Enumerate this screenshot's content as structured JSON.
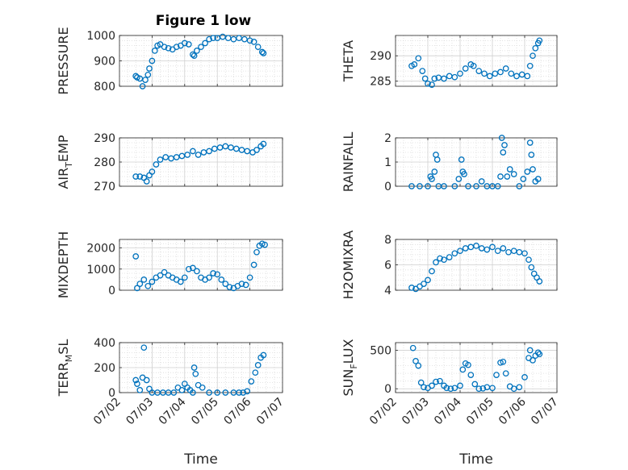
{
  "figure": {
    "title": "Figure 1 low"
  },
  "colors": {
    "marker": "#0072BD",
    "axis": "#262626",
    "grid": "#b3b3b3"
  },
  "chart_data": [
    {
      "type": "scatter",
      "ylabel": "PRESSURE",
      "xlabel": "",
      "ylim": [
        800,
        1000
      ],
      "yticks": [
        800,
        900,
        1000
      ],
      "x": [
        "07/02 12:00",
        "07/02 13:00",
        "07/02 15:00",
        "07/02 17:00",
        "07/02 19:00",
        "07/02 21:00",
        "07/02 22:00",
        "07/03 00:00",
        "07/03 02:00",
        "07/03 04:00",
        "07/03 06:00",
        "07/03 09:00",
        "07/03 12:00",
        "07/03 15:00",
        "07/03 18:00",
        "07/03 21:00",
        "07/04 00:00",
        "07/04 03:00",
        "07/04 06:00",
        "07/04 07:00",
        "07/04 09:00",
        "07/04 12:00",
        "07/04 15:00",
        "07/04 18:00",
        "07/04 21:00",
        "07/05 00:00",
        "07/05 04:00",
        "07/05 08:00",
        "07/05 12:00",
        "07/05 16:00",
        "07/05 20:00",
        "07/06 00:00",
        "07/06 03:00",
        "07/06 06:00",
        "07/06 09:00",
        "07/06 10:00"
      ],
      "y": [
        840,
        835,
        830,
        800,
        825,
        845,
        870,
        900,
        940,
        960,
        965,
        955,
        950,
        945,
        955,
        960,
        970,
        965,
        925,
        920,
        940,
        955,
        970,
        985,
        990,
        990,
        995,
        990,
        985,
        990,
        985,
        980,
        975,
        955,
        935,
        930
      ]
    },
    {
      "type": "scatter",
      "ylabel": "THETA",
      "xlabel": "",
      "ylim": [
        284,
        294
      ],
      "yticks": [
        285,
        290
      ],
      "x": [
        "07/02 12:00",
        "07/02 14:00",
        "07/02 17:00",
        "07/02 20:00",
        "07/02 22:00",
        "07/03 00:00",
        "07/03 03:00",
        "07/03 05:00",
        "07/03 08:00",
        "07/03 12:00",
        "07/03 16:00",
        "07/03 20:00",
        "07/04 00:00",
        "07/04 04:00",
        "07/04 08:00",
        "07/04 10:00",
        "07/04 14:00",
        "07/04 18:00",
        "07/04 22:00",
        "07/05 02:00",
        "07/05 06:00",
        "07/05 10:00",
        "07/05 14:00",
        "07/05 18:00",
        "07/05 22:00",
        "07/06 02:00",
        "07/06 04:00",
        "07/06 06:00",
        "07/06 08:00",
        "07/06 10:00",
        "07/06 11:00"
      ],
      "y": [
        288,
        288.3,
        289.5,
        287,
        285.5,
        284.5,
        284.3,
        285.5,
        285.7,
        285.5,
        286,
        285.8,
        286.5,
        287.5,
        288.3,
        288,
        287,
        286.5,
        286,
        286.5,
        286.8,
        287.5,
        286.5,
        286,
        286.3,
        286,
        288,
        290,
        291.5,
        292.5,
        293
      ]
    },
    {
      "type": "scatter",
      "ylabel": "AIR_TEMP",
      "xlabel": "",
      "ylim": [
        270,
        290
      ],
      "yticks": [
        270,
        280,
        290
      ],
      "x": [
        "07/02 12:00",
        "07/02 15:00",
        "07/02 18:00",
        "07/02 20:00",
        "07/02 22:00",
        "07/03 00:00",
        "07/03 03:00",
        "07/03 06:00",
        "07/03 10:00",
        "07/03 14:00",
        "07/03 18:00",
        "07/03 22:00",
        "07/04 02:00",
        "07/04 06:00",
        "07/04 10:00",
        "07/04 14:00",
        "07/04 18:00",
        "07/04 22:00",
        "07/05 02:00",
        "07/05 06:00",
        "07/05 10:00",
        "07/05 14:00",
        "07/05 18:00",
        "07/05 22:00",
        "07/06 02:00",
        "07/06 05:00",
        "07/06 08:00",
        "07/06 10:00"
      ],
      "y": [
        274,
        274,
        273.5,
        272,
        274.5,
        276,
        279,
        281,
        282,
        281.5,
        282,
        282.5,
        283,
        284.5,
        283,
        284,
        284.5,
        285.5,
        286,
        286.5,
        286,
        285.5,
        285,
        284.5,
        284,
        285,
        286.5,
        287.5
      ]
    },
    {
      "type": "scatter",
      "ylabel": "RAINFALL",
      "xlabel": "",
      "ylim": [
        0,
        2
      ],
      "yticks": [
        0,
        1,
        2
      ],
      "x": [
        "07/02 12:00",
        "07/02 18:00",
        "07/03 00:00",
        "07/03 02:00",
        "07/03 03:00",
        "07/03 05:00",
        "07/03 06:00",
        "07/03 07:00",
        "07/03 08:00",
        "07/03 12:00",
        "07/03 20:00",
        "07/03 23:00",
        "07/04 01:00",
        "07/04 02:00",
        "07/04 03:00",
        "07/04 06:00",
        "07/04 12:00",
        "07/04 16:00",
        "07/04 20:00",
        "07/05 00:00",
        "07/05 04:00",
        "07/05 06:00",
        "07/05 07:00",
        "07/05 08:00",
        "07/05 09:00",
        "07/05 11:00",
        "07/05 13:00",
        "07/05 16:00",
        "07/05 20:00",
        "07/05 23:00",
        "07/06 02:00",
        "07/06 04:00",
        "07/06 05:00",
        "07/06 06:00",
        "07/06 08:00",
        "07/06 10:00"
      ],
      "y": [
        0,
        0,
        0,
        0.4,
        0.3,
        0.6,
        1.3,
        1.1,
        0,
        0,
        0,
        0.3,
        1.1,
        0.6,
        0.5,
        0,
        0,
        0.2,
        0,
        0,
        0,
        0.4,
        2.0,
        1.4,
        1.7,
        0.4,
        0.7,
        0.5,
        0,
        0.3,
        0.6,
        1.8,
        1.3,
        0.7,
        0.2,
        0.3
      ]
    },
    {
      "type": "scatter",
      "ylabel": "MIXDEPTH",
      "xlabel": "",
      "ylim": [
        0,
        2400
      ],
      "yticks": [
        0,
        1000,
        2000
      ],
      "x": [
        "07/02 12:00",
        "07/02 13:00",
        "07/02 15:00",
        "07/02 18:00",
        "07/02 21:00",
        "07/03 00:00",
        "07/03 03:00",
        "07/03 06:00",
        "07/03 09:00",
        "07/03 12:00",
        "07/03 15:00",
        "07/03 18:00",
        "07/03 21:00",
        "07/04 00:00",
        "07/04 03:00",
        "07/04 06:00",
        "07/04 09:00",
        "07/04 12:00",
        "07/04 15:00",
        "07/04 18:00",
        "07/04 21:00",
        "07/05 00:00",
        "07/05 03:00",
        "07/05 06:00",
        "07/05 09:00",
        "07/05 12:00",
        "07/05 15:00",
        "07/05 18:00",
        "07/05 21:00",
        "07/06 00:00",
        "07/06 03:00",
        "07/06 05:00",
        "07/06 07:00",
        "07/06 09:00",
        "07/06 11:00"
      ],
      "y": [
        1600,
        100,
        300,
        500,
        200,
        400,
        600,
        700,
        850,
        700,
        600,
        500,
        400,
        600,
        1000,
        1050,
        900,
        600,
        500,
        600,
        800,
        750,
        500,
        300,
        150,
        100,
        200,
        300,
        250,
        600,
        1200,
        1800,
        2100,
        2200,
        2150
      ]
    },
    {
      "type": "scatter",
      "ylabel": "H2OMIXRA",
      "xlabel": "",
      "ylim": [
        4,
        8
      ],
      "yticks": [
        4,
        6,
        8
      ],
      "x": [
        "07/02 12:00",
        "07/02 15:00",
        "07/02 18:00",
        "07/02 21:00",
        "07/03 00:00",
        "07/03 03:00",
        "07/03 06:00",
        "07/03 09:00",
        "07/03 12:00",
        "07/03 16:00",
        "07/03 20:00",
        "07/04 00:00",
        "07/04 04:00",
        "07/04 08:00",
        "07/04 12:00",
        "07/04 16:00",
        "07/04 20:00",
        "07/05 00:00",
        "07/05 04:00",
        "07/05 08:00",
        "07/05 12:00",
        "07/05 16:00",
        "07/05 20:00",
        "07/06 00:00",
        "07/06 03:00",
        "07/06 05:00",
        "07/06 07:00",
        "07/06 09:00",
        "07/06 11:00"
      ],
      "y": [
        4.2,
        4.1,
        4.3,
        4.5,
        4.8,
        5.5,
        6.2,
        6.5,
        6.4,
        6.6,
        6.9,
        7.1,
        7.3,
        7.4,
        7.5,
        7.3,
        7.2,
        7.4,
        7.1,
        7.3,
        7.0,
        7.1,
        7.0,
        6.9,
        6.4,
        5.8,
        5.3,
        5.0,
        4.7
      ]
    },
    {
      "type": "scatter",
      "ylabel": "TERR_MSL",
      "xlabel": "Time",
      "ylim": [
        0,
        400
      ],
      "yticks": [
        0,
        200,
        400
      ],
      "xlim": [
        "07/02",
        "07/07"
      ],
      "xticks": [
        "07/02",
        "07/03",
        "07/04",
        "07/05",
        "07/06",
        "07/07"
      ],
      "x": [
        "07/02 12:00",
        "07/02 13:00",
        "07/02 15:00",
        "07/02 17:00",
        "07/02 18:00",
        "07/02 20:00",
        "07/02 22:00",
        "07/03 00:00",
        "07/03 04:00",
        "07/03 08:00",
        "07/03 12:00",
        "07/03 16:00",
        "07/03 19:00",
        "07/03 22:00",
        "07/04 00:00",
        "07/04 02:00",
        "07/04 04:00",
        "07/04 06:00",
        "07/04 07:00",
        "07/04 08:00",
        "07/04 10:00",
        "07/04 13:00",
        "07/04 18:00",
        "07/05 00:00",
        "07/05 06:00",
        "07/05 12:00",
        "07/05 16:00",
        "07/05 19:00",
        "07/05 22:00",
        "07/06 01:00",
        "07/06 04:00",
        "07/06 06:00",
        "07/06 08:00",
        "07/06 10:00"
      ],
      "y": [
        100,
        70,
        20,
        120,
        360,
        100,
        30,
        0,
        0,
        0,
        0,
        0,
        40,
        20,
        70,
        40,
        20,
        0,
        200,
        150,
        60,
        40,
        0,
        0,
        0,
        0,
        0,
        0,
        10,
        90,
        160,
        220,
        280,
        300
      ]
    },
    {
      "type": "scatter",
      "ylabel": "SUN_FLUX",
      "xlabel": "Time",
      "ylim": [
        -50,
        600
      ],
      "yticks": [
        0,
        500
      ],
      "xlim": [
        "07/02",
        "07/07"
      ],
      "xticks": [
        "07/02",
        "07/03",
        "07/04",
        "07/05",
        "07/06",
        "07/07"
      ],
      "x": [
        "07/02 13:00",
        "07/02 15:00",
        "07/02 17:00",
        "07/02 19:00",
        "07/02 21:00",
        "07/03 00:00",
        "07/03 03:00",
        "07/03 06:00",
        "07/03 09:00",
        "07/03 12:00",
        "07/03 14:00",
        "07/03 17:00",
        "07/03 20:00",
        "07/04 00:00",
        "07/04 02:00",
        "07/04 04:00",
        "07/04 06:00",
        "07/04 08:00",
        "07/04 11:00",
        "07/04 14:00",
        "07/04 17:00",
        "07/04 20:00",
        "07/05 00:00",
        "07/05 03:00",
        "07/05 06:00",
        "07/05 08:00",
        "07/05 10:00",
        "07/05 13:00",
        "07/05 16:00",
        "07/05 20:00",
        "07/06 00:00",
        "07/06 03:00",
        "07/06 04:00",
        "07/06 06:00",
        "07/06 08:00",
        "07/06 10:00",
        "07/06 11:00"
      ],
      "y": [
        530,
        360,
        300,
        80,
        20,
        10,
        40,
        90,
        100,
        40,
        10,
        0,
        10,
        40,
        250,
        330,
        310,
        180,
        60,
        0,
        5,
        20,
        10,
        180,
        340,
        350,
        200,
        30,
        0,
        20,
        150,
        400,
        500,
        370,
        430,
        470,
        450
      ]
    }
  ]
}
